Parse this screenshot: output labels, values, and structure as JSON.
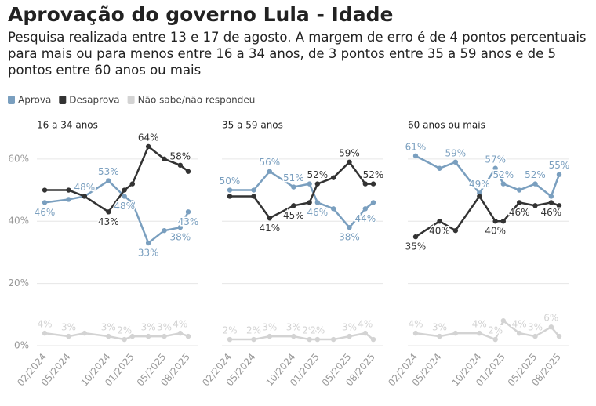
{
  "title": "Aprovação do governo Lula - Idade",
  "subtitle": "Pesquisa realizada entre 13 e 17 de agosto. A margem de erro é de 4 pontos percentuais para mais ou para menos entre 16 a 34 anos, de 3 pontos entre 35 a 59 anos e de 5 pontos entre 60 anos ou mais",
  "chart_data": [
    {
      "type": "line",
      "title": "16 a 34 anos",
      "x": [
        "02/2024",
        "05/2024",
        "07/2024",
        "10/2024",
        "12/2024",
        "01/2025",
        "03/2025",
        "05/2025",
        "07/2025",
        "08/2025"
      ],
      "xticks": [
        "02/2024",
        "05/2024",
        "10/2024",
        "01/2025",
        "05/2025",
        "08/2025"
      ],
      "ylim": [
        0,
        65
      ],
      "yticks": [
        {
          "value": 0,
          "label": "0%"
        },
        {
          "value": 20,
          "label": "20%"
        },
        {
          "value": 40,
          "label": "40%"
        },
        {
          "value": 60,
          "label": "60%"
        }
      ],
      "grid": true,
      "series": [
        {
          "name": "Aprova",
          "color": "#7a9fbf",
          "values": [
            46,
            47,
            48,
            53,
            48,
            46,
            33,
            37,
            38,
            43
          ],
          "value_labels": [
            "46%",
            null,
            "48%",
            "53%",
            "48%",
            null,
            "33%",
            null,
            "38%",
            "43%"
          ]
        },
        {
          "name": "Desaprova",
          "color": "#333333",
          "values": [
            50,
            50,
            48,
            43,
            50,
            52,
            64,
            60,
            58,
            56
          ],
          "value_labels": [
            null,
            null,
            null,
            "43%",
            null,
            null,
            "64%",
            null,
            "58%",
            null
          ]
        },
        {
          "name": "Não sabe/não respondeu",
          "color": "#d3d3d3",
          "values": [
            4,
            3,
            4,
            3,
            2,
            3,
            3,
            3,
            4,
            3
          ],
          "value_labels": [
            "4%",
            "3%",
            null,
            "3%",
            "2%",
            null,
            "3%",
            "3%",
            "4%",
            null
          ]
        }
      ]
    },
    {
      "type": "line",
      "title": "35 a 59 anos",
      "x": [
        "02/2024",
        "05/2024",
        "07/2024",
        "10/2024",
        "12/2024",
        "01/2025",
        "03/2025",
        "05/2025",
        "07/2025",
        "08/2025"
      ],
      "xticks": [
        "02/2024",
        "05/2024",
        "10/2024",
        "01/2025",
        "05/2025",
        "08/2025"
      ],
      "ylim": [
        0,
        65
      ],
      "yticks": [
        0,
        20,
        40,
        60
      ],
      "grid": true,
      "series": [
        {
          "name": "Aprova",
          "color": "#7a9fbf",
          "values": [
            50,
            50,
            56,
            51,
            52,
            46,
            44,
            38,
            44,
            46
          ],
          "value_labels": [
            "50%",
            null,
            "56%",
            "51%",
            null,
            "46%",
            null,
            "38%",
            "44%",
            null
          ]
        },
        {
          "name": "Desaprova",
          "color": "#333333",
          "values": [
            48,
            48,
            41,
            45,
            46,
            52,
            54,
            59,
            52,
            52
          ],
          "value_labels": [
            null,
            null,
            "41%",
            "45%",
            null,
            "52%",
            null,
            "59%",
            null,
            "52%"
          ]
        },
        {
          "name": "Não sabe/não respondeu",
          "color": "#d3d3d3",
          "values": [
            2,
            2,
            3,
            3,
            2,
            2,
            2,
            3,
            4,
            2
          ],
          "value_labels": [
            "2%",
            "2%",
            "3%",
            "3%",
            "2%",
            "2%",
            null,
            "3%",
            "4%",
            null
          ]
        }
      ]
    },
    {
      "type": "line",
      "title": "60 anos ou mais",
      "x": [
        "02/2024",
        "05/2024",
        "07/2024",
        "10/2024",
        "12/2024",
        "01/2025",
        "03/2025",
        "05/2025",
        "07/2025",
        "08/2025"
      ],
      "xticks": [
        "02/2024",
        "05/2024",
        "10/2024",
        "01/2025",
        "05/2025",
        "08/2025"
      ],
      "ylim": [
        0,
        65
      ],
      "yticks": [
        0,
        20,
        40,
        60
      ],
      "grid": true,
      "series": [
        {
          "name": "Aprova",
          "color": "#7a9fbf",
          "values": [
            61,
            57,
            59,
            49,
            57,
            52,
            50,
            52,
            48,
            55
          ],
          "value_labels": [
            "61%",
            null,
            "59%",
            "49%",
            "57%",
            "52%",
            null,
            "52%",
            null,
            "55%"
          ]
        },
        {
          "name": "Desaprova",
          "color": "#333333",
          "values": [
            35,
            40,
            37,
            48,
            40,
            40,
            46,
            45,
            46,
            45
          ],
          "value_labels": [
            "35%",
            "40%",
            null,
            null,
            "40%",
            null,
            "46%",
            null,
            "46%",
            null
          ]
        },
        {
          "name": "Não sabe/não respondeu",
          "color": "#d3d3d3",
          "values": [
            4,
            3,
            4,
            4,
            2,
            8,
            4,
            3,
            6,
            3
          ],
          "value_labels": [
            "4%",
            "3%",
            null,
            "4%",
            "2%",
            null,
            "4%",
            "3%",
            "6%",
            null
          ]
        }
      ]
    }
  ]
}
